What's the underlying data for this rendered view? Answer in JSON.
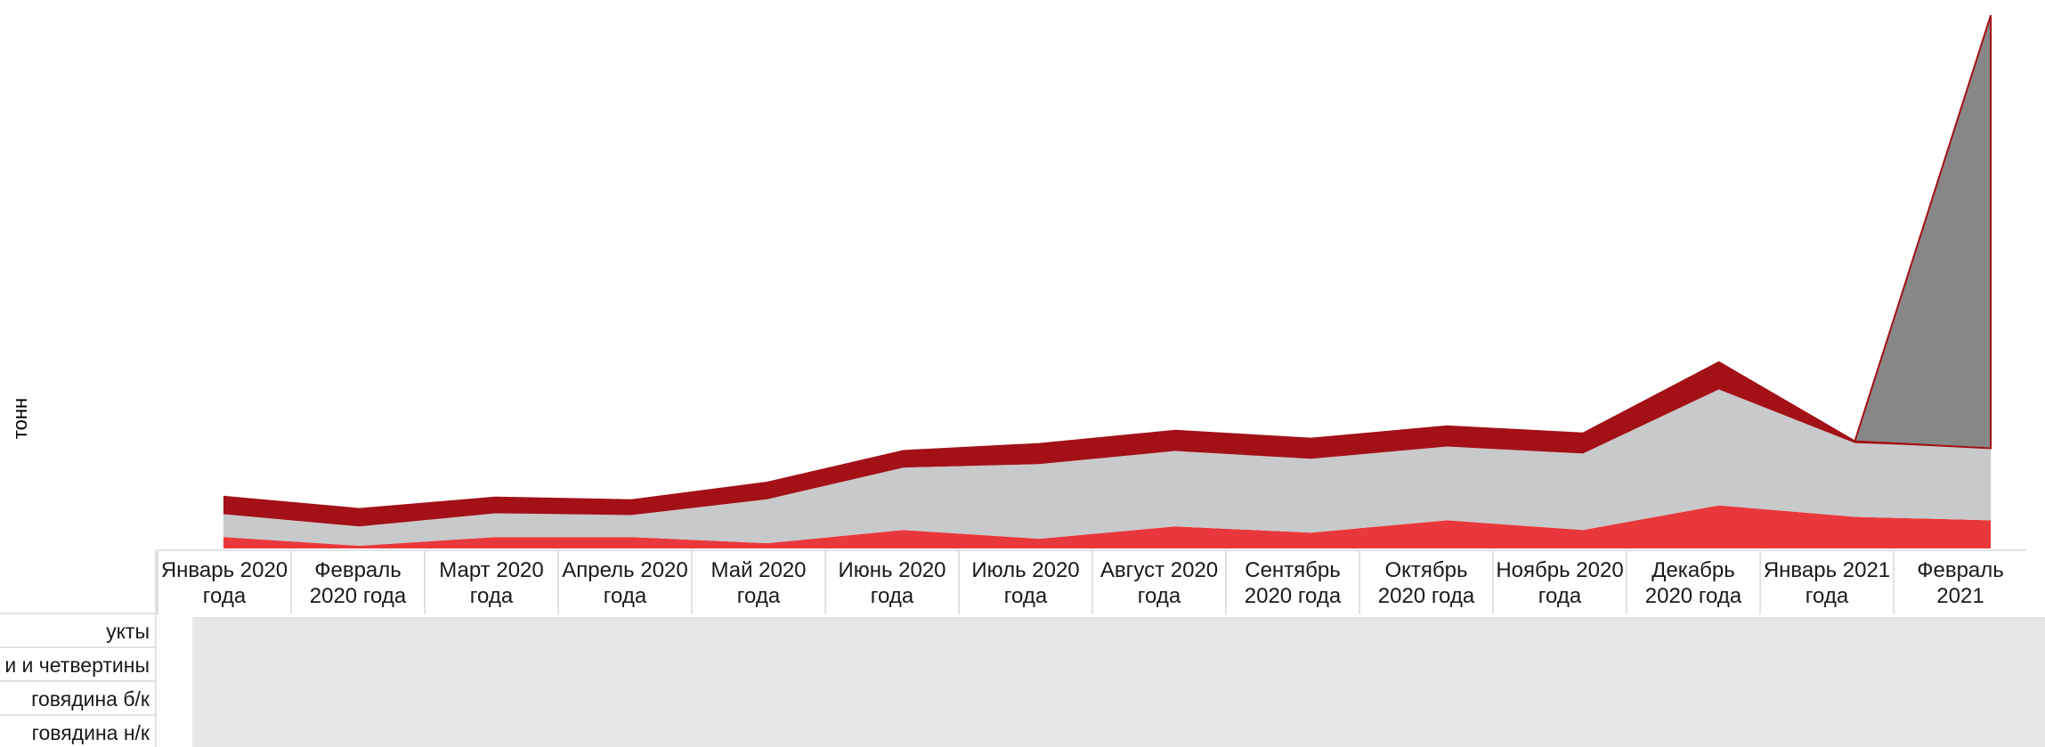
{
  "chart_data": {
    "type": "area",
    "ylabel": "тонн",
    "categories": [
      "Январь 2020 года",
      "Февраль 2020 года",
      "Март 2020 года",
      "Апрель 2020 года",
      "Май 2020 года",
      "Июнь 2020 года",
      "Июль 2020 года",
      "Август 2020 года",
      "Сентябрь 2020 года",
      "Октябрь 2020 года",
      "Ноябрь 2020 года",
      "Декабрь 2020 года",
      "Январь 2021 года",
      "Февраль 2021"
    ],
    "series": [
      {
        "name": "говядина н/к",
        "color": "#e8383b",
        "values": [
          13,
          3,
          13,
          13,
          6,
          21,
          11,
          25,
          18,
          32,
          21,
          49,
          36,
          32
        ]
      },
      {
        "name": "говядина б/к",
        "color": "#c8c9cb",
        "values": [
          26,
          22,
          27,
          25,
          50,
          71,
          85,
          86,
          84,
          84,
          87,
          132,
          84,
          82
        ]
      },
      {
        "name": "полутуши и четвертины",
        "color": "#a31016",
        "values": [
          20,
          20,
          18,
          17,
          19,
          19,
          23,
          23,
          23,
          23,
          23,
          31,
          2,
          0
        ]
      },
      {
        "name": "продукты",
        "color": "#878787",
        "values": [
          0,
          0,
          0,
          0,
          0,
          0,
          0,
          0,
          0,
          0,
          0,
          0,
          0,
          493
        ]
      }
    ],
    "ylim": [
      0,
      610
    ],
    "grid": false,
    "legend": "table-below",
    "table_rows": [
      "продукты",
      "полутуши и четвертины",
      "говядина б/к",
      "говядина н/к"
    ]
  },
  "table": {
    "row_labels": [
      "укты",
      "и и четвертины",
      "говядина б/к",
      "говядина н/к"
    ]
  }
}
